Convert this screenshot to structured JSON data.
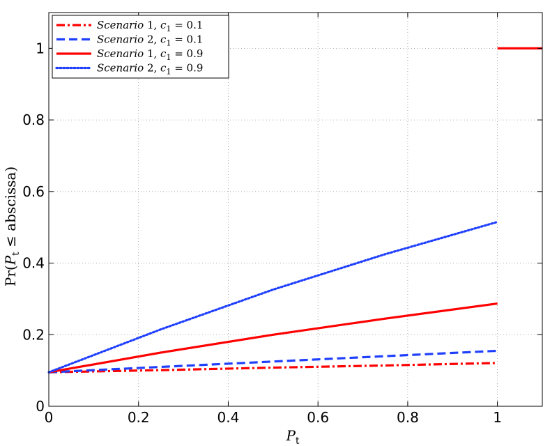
{
  "chart_data": {
    "type": "line",
    "xlabel": "P_t",
    "ylabel": "Pr(P_t ≤ abscissa)",
    "xlim": [
      0,
      1.1
    ],
    "ylim": [
      0,
      1.1
    ],
    "xticks": [
      0,
      0.2,
      0.4,
      0.6,
      0.8,
      1
    ],
    "xtick_labels": [
      "0",
      "0.2",
      "0.4",
      "0.6",
      "0.8",
      "1"
    ],
    "yticks": [
      0,
      0.2,
      0.4,
      0.6,
      0.8,
      1
    ],
    "ytick_labels": [
      "0",
      "0.2",
      "0.4",
      "0.6",
      "0.8",
      "1"
    ],
    "grid": true,
    "legend_position": "top-left",
    "series": [
      {
        "name": "Scenario 1, c1 = 0.1",
        "color": "#ff0000",
        "dash": "dashdot",
        "x": [
          0,
          0.25,
          0.5,
          0.75,
          1
        ],
        "y": [
          0.095,
          0.101,
          0.108,
          0.114,
          0.121
        ]
      },
      {
        "name": "Scenario 2, c1 = 0.1",
        "color": "#1f3fff",
        "dash": "dashed",
        "x": [
          0,
          0.25,
          0.5,
          0.75,
          1
        ],
        "y": [
          0.095,
          0.11,
          0.125,
          0.14,
          0.155
        ]
      },
      {
        "name": "Scenario 1, c1 = 0.9",
        "color": "#ff0000",
        "dash": "solid",
        "x": [
          0,
          0.25,
          0.5,
          0.75,
          1
        ],
        "y": [
          0.095,
          0.15,
          0.2,
          0.245,
          0.287
        ]
      },
      {
        "name": "Scenario 2, c1 = 0.9",
        "color": "#1f3fff",
        "dash": "dotted",
        "x": [
          0,
          0.25,
          0.5,
          0.75,
          1
        ],
        "y": [
          0.095,
          0.215,
          0.326,
          0.425,
          0.515
        ]
      }
    ],
    "extra_segment": {
      "color": "#ff0000",
      "x": [
        1,
        1.1
      ],
      "y": [
        1,
        1
      ]
    }
  }
}
